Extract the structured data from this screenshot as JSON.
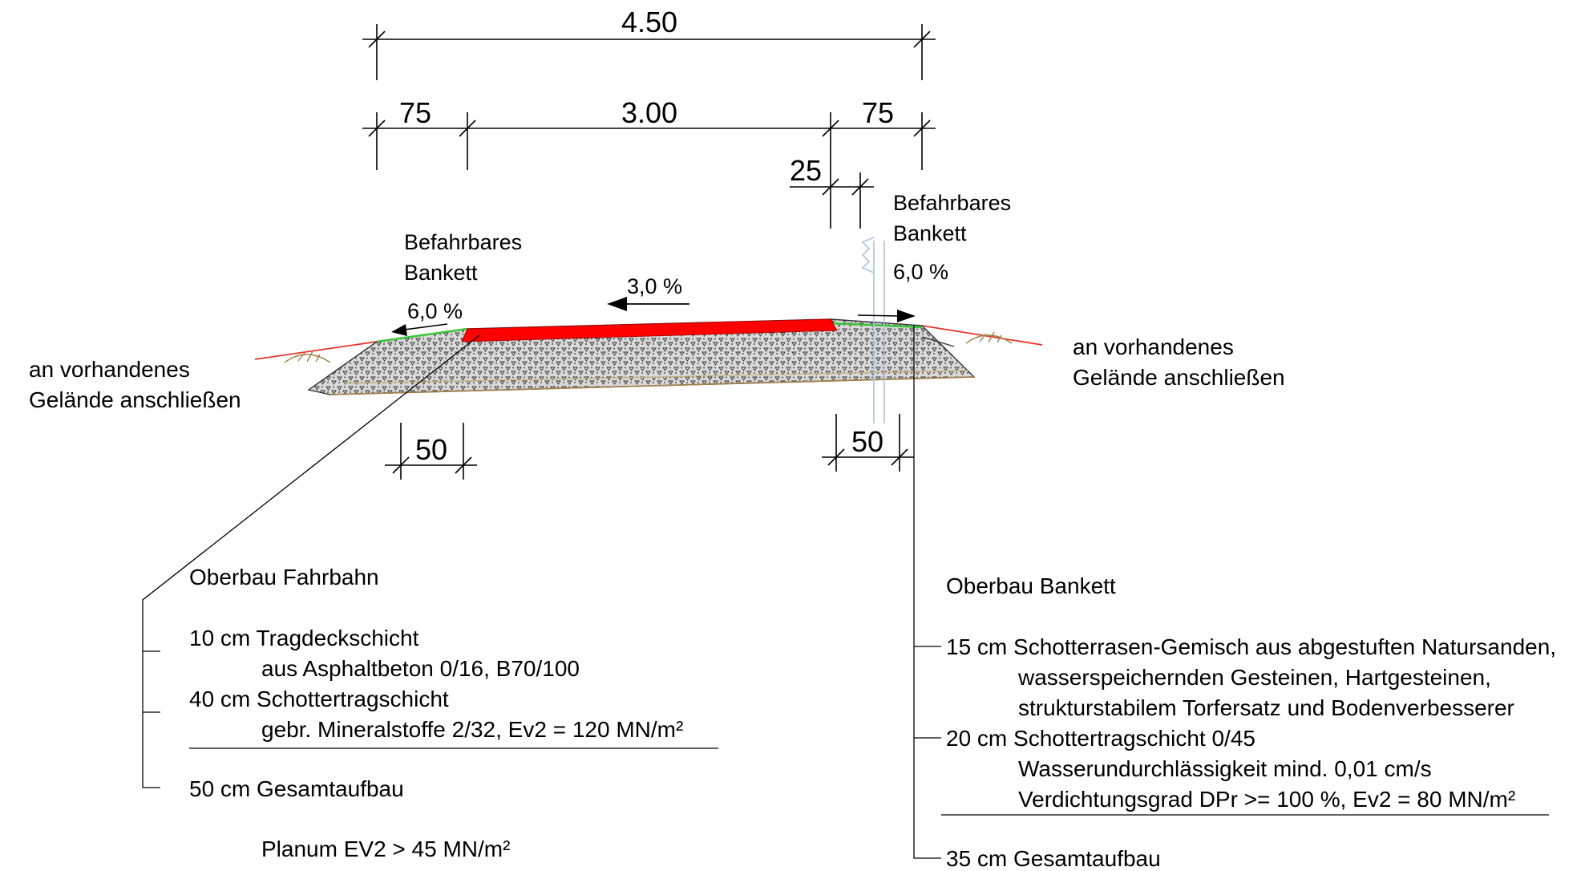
{
  "dimensions": {
    "total": "4.50",
    "left_shoulder": "75",
    "carriageway": "3.00",
    "right_shoulder": "75",
    "right_offset": "25",
    "left_base": "50",
    "right_base": "50"
  },
  "labels": {
    "left_shoulder_title_1": "Befahrbares",
    "left_shoulder_title_2": "Bankett",
    "left_shoulder_slope": "6,0 %",
    "carriageway_slope": "3,0 %",
    "right_shoulder_title_1": "Befahrbares",
    "right_shoulder_title_2": "Bankett",
    "right_shoulder_slope": "6,0 %",
    "left_terrain_1": "an vorhandenes",
    "left_terrain_2": "Gelände anschließen",
    "right_terrain_1": "an vorhandenes",
    "right_terrain_2": "Gelände anschließen"
  },
  "oberbau_fahrbahn": {
    "title": "Oberbau Fahrbahn",
    "layer1_head": "10 cm Tragdeckschicht",
    "layer1_detail": "aus Asphaltbeton 0/16, B70/100",
    "layer2_head": "40 cm Schottertragschicht",
    "layer2_detail": "gebr. Mineralstoffe 2/32, Ev2 = 120 MN/m²",
    "total": "50 cm Gesamtaufbau",
    "planum": "Planum EV2 > 45 MN/m²"
  },
  "oberbau_bankett": {
    "title": "Oberbau Bankett",
    "layer1_head": "15 cm Schotterrasen-Gemisch aus abgestuften Natursanden,",
    "layer1_detail_1": "wasserspeichernden Gesteinen, Hartgesteinen,",
    "layer1_detail_2": "strukturstabilem Torfersatz und Bodenverbesserer",
    "layer2_head": "20 cm Schottertragschicht 0/45",
    "layer2_detail_1": "Wasserundurchlässigkeit mind. 0,01 cm/s",
    "layer2_detail_2": "Verdichtungsgrad DPr >= 100 %, Ev2 = 80 MN/m²",
    "total": "35 cm Gesamtaufbau"
  },
  "colors": {
    "asphalt": "#ff0000",
    "terrain_line": "#e8342a",
    "grass_line": "#3cc43c",
    "gravel_fill": "#d8d8d8",
    "ground_hatch": "#a0804a",
    "post": "#a9c3e0"
  }
}
